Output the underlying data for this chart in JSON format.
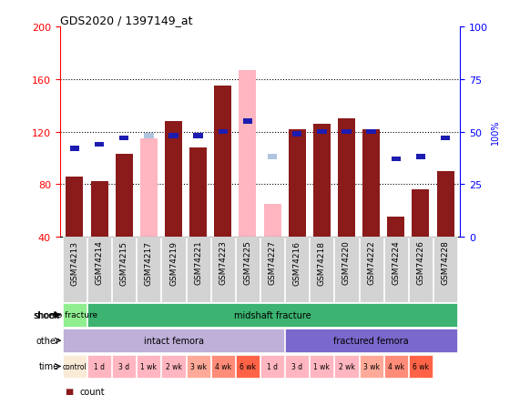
{
  "title": "GDS2020 / 1397149_at",
  "samples": [
    "GSM74213",
    "GSM74214",
    "GSM74215",
    "GSM74217",
    "GSM74219",
    "GSM74221",
    "GSM74223",
    "GSM74225",
    "GSM74227",
    "GSM74216",
    "GSM74218",
    "GSM74220",
    "GSM74222",
    "GSM74224",
    "GSM74226",
    "GSM74228"
  ],
  "count_values": [
    86,
    82,
    103,
    null,
    128,
    108,
    155,
    null,
    null,
    122,
    126,
    130,
    122,
    55,
    76,
    90
  ],
  "absent_bar_values": [
    null,
    null,
    null,
    115,
    null,
    null,
    null,
    167,
    65,
    null,
    null,
    null,
    null,
    null,
    null,
    null
  ],
  "absent_rank_values": [
    null,
    null,
    null,
    48,
    null,
    null,
    null,
    55,
    38,
    null,
    null,
    null,
    null,
    null,
    null,
    null
  ],
  "percentile_rank": [
    42,
    44,
    47,
    null,
    48,
    48,
    50,
    55,
    null,
    49,
    50,
    50,
    50,
    37,
    38,
    47
  ],
  "ylim": [
    40,
    200
  ],
  "yticks_left": [
    40,
    80,
    120,
    160,
    200
  ],
  "yticks_right": [
    0,
    25,
    50,
    75,
    100
  ],
  "color_count": "#8B1A1A",
  "color_rank": "#1C1CB0",
  "color_absent_bar": "#FFB6C1",
  "color_absent_rank": "#B0C4DE",
  "shock_no_color": "#90EE90",
  "shock_mid_color": "#3CB371",
  "other_intact_color": "#BEB0D8",
  "other_frac_color": "#7B68CC",
  "time_colors": [
    "#FAEBD7",
    "#FFB6C1",
    "#FFB6C1",
    "#FFB6C1",
    "#FFB6C1",
    "#FFAA99",
    "#FF8C78",
    "#FF6347",
    "#FFB6C1",
    "#FFB6C1",
    "#FFB6C1",
    "#FFB6C1",
    "#FFAA99",
    "#FF8C78",
    "#FF6347"
  ],
  "time_labels": [
    "control",
    "1 d",
    "3 d",
    "1 wk",
    "2 wk",
    "3 wk",
    "4 wk",
    "6 wk",
    "1 d",
    "3 d",
    "1 wk",
    "2 wk",
    "3 wk",
    "4 wk",
    "6 wk"
  ],
  "bar_width": 0.7
}
